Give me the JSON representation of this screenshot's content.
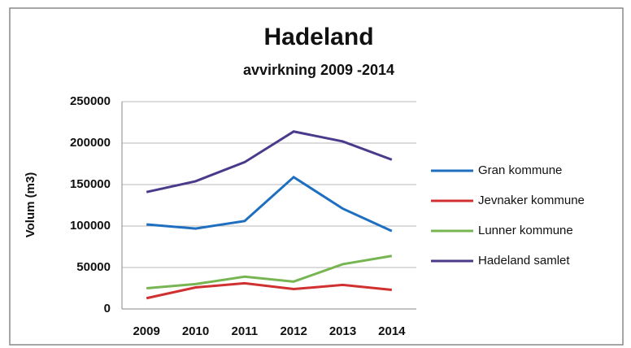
{
  "chart_data": {
    "type": "line",
    "title": "Hadeland",
    "subtitle": "avvirkning 2009 -2014",
    "y_label": "Volum (m3)",
    "categories": [
      "2009",
      "2010",
      "2011",
      "2012",
      "2013",
      "2014"
    ],
    "series": [
      {
        "name": "Gran kommune",
        "color": "#1f6fc0",
        "values": [
          102000,
          97000,
          106000,
          159000,
          121000,
          94000
        ]
      },
      {
        "name": "Jevnaker kommune",
        "color": "#d03030",
        "values": [
          13000,
          26000,
          31000,
          24000,
          29000,
          23000
        ]
      },
      {
        "name": "Lunner kommune",
        "color": "#77b553",
        "values": [
          25000,
          30000,
          39000,
          33000,
          54000,
          64000
        ]
      },
      {
        "name": "Hadeland samlet",
        "color": "#4b3a8c",
        "values": [
          141000,
          154000,
          177000,
          214000,
          202000,
          180000
        ]
      }
    ],
    "ylim": [
      0,
      250000
    ],
    "yticks": [
      0,
      50000,
      100000,
      150000,
      200000,
      250000
    ],
    "grid": true,
    "legend": "right"
  }
}
